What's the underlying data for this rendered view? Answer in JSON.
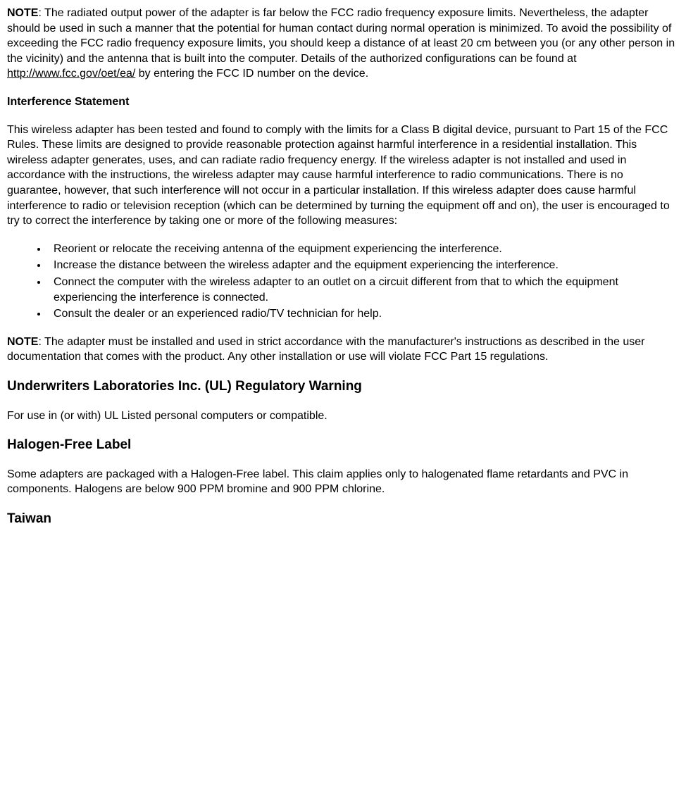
{
  "note1": {
    "label": "NOTE",
    "text1": ": The radiated output power of the adapter is far below the FCC radio frequency exposure limits. Nevertheless, the adapter should be used in such a manner that the potential for human contact during normal operation is minimized. To avoid the possibility of exceeding the FCC radio frequency exposure limits, you should keep a distance of at least 20 cm between you (or any other person in the vicinity) and the antenna that is built into the computer. Details of the authorized configurations can be found at ",
    "link": "http://www.fcc.gov/oet/ea/",
    "text2": " by entering the FCC ID number on the device."
  },
  "interference": {
    "heading": "Interference Statement",
    "body": "This wireless adapter has been tested and found to comply with the limits for a Class B digital device, pursuant to Part 15 of the FCC Rules. These limits are designed to provide reasonable protection against harmful interference in a residential installation. This wireless adapter generates, uses, and can radiate radio frequency energy. If the wireless adapter is not installed and used in accordance with the instructions, the wireless adapter may cause harmful interference to radio communications. There is no guarantee, however, that such interference will not occur in a particular installation. If this wireless adapter does cause harmful interference to radio or television reception (which can be determined by turning the equipment off and on), the user is encouraged to try to correct the interference by taking one or more of the following measures:",
    "bullets": [
      "Reorient or relocate the receiving antenna of the equipment experiencing the interference.",
      "Increase the distance between the wireless adapter and the equipment experiencing the interference.",
      "Connect the computer with the wireless adapter to an outlet on a circuit different from that to which the equipment experiencing the interference is connected.",
      "Consult the dealer or an experienced radio/TV technician for help."
    ]
  },
  "note2": {
    "label": "NOTE",
    "text": ": The adapter must be installed and used in strict accordance with the manufacturer's instructions as described in the user documentation that comes with the product. Any other installation or use will violate FCC Part 15 regulations."
  },
  "ul": {
    "heading": "Underwriters Laboratories Inc. (UL) Regulatory Warning",
    "body": "For use in (or with) UL Listed personal computers or compatible."
  },
  "halogen": {
    "heading": "Halogen-Free Label",
    "body": "Some adapters are packaged with a Halogen-Free label. This claim applies only to halogenated flame retardants and PVC in components. Halogens are below 900 PPM bromine and 900 PPM chlorine."
  },
  "taiwan": {
    "heading": "Taiwan"
  }
}
